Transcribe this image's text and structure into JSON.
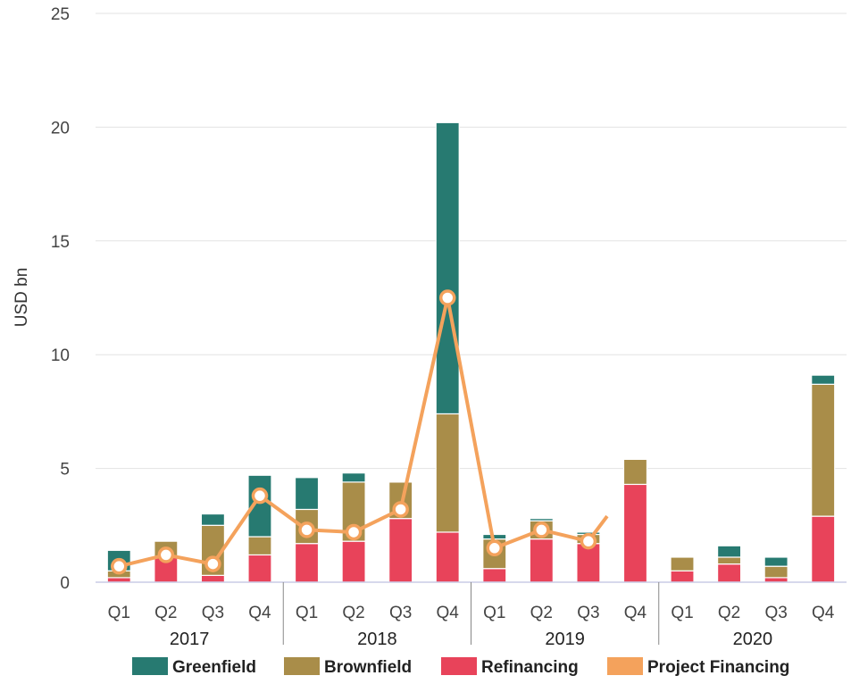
{
  "chart_data": {
    "type": "bar",
    "ylabel": "USD bn",
    "ylim": [
      0,
      25
    ],
    "yticks": [
      0,
      5,
      10,
      15,
      20,
      25
    ],
    "grid": "horizontal",
    "legend_position": "bottom",
    "categories": [
      "Q1",
      "Q2",
      "Q3",
      "Q4",
      "Q1",
      "Q2",
      "Q3",
      "Q4",
      "Q1",
      "Q2",
      "Q3",
      "Q4",
      "Q1",
      "Q2",
      "Q3",
      "Q4"
    ],
    "years": [
      "2017",
      "2018",
      "2019",
      "2020"
    ],
    "series": [
      {
        "name": "Refinancing",
        "color": "#e8435a",
        "kind": "stacked-bar",
        "values": [
          0.2,
          1.1,
          0.3,
          1.2,
          1.7,
          1.8,
          2.8,
          2.2,
          0.6,
          1.9,
          1.7,
          4.3,
          0.5,
          0.8,
          0.2,
          2.9
        ]
      },
      {
        "name": "Brownfield",
        "color": "#a98d49",
        "kind": "stacked-bar",
        "values": [
          0.3,
          0.7,
          2.2,
          0.8,
          1.5,
          2.6,
          1.6,
          5.2,
          1.3,
          0.8,
          0.4,
          1.1,
          0.6,
          0.3,
          0.5,
          5.8
        ]
      },
      {
        "name": "Greenfield",
        "color": "#277a71",
        "kind": "stacked-bar",
        "values": [
          0.9,
          0.0,
          0.5,
          2.7,
          1.4,
          0.4,
          0.0,
          12.8,
          0.2,
          0.1,
          0.1,
          0.0,
          0.0,
          0.5,
          0.4,
          0.4
        ]
      },
      {
        "name": "Project Financing",
        "color": "#f4a25c",
        "kind": "line",
        "values": [
          0.7,
          1.2,
          0.8,
          3.8,
          2.3,
          2.2,
          3.2,
          12.5,
          1.5,
          2.3,
          1.8,
          null,
          null,
          null,
          null,
          null
        ],
        "segment_end": 2.9
      }
    ],
    "legend_order": [
      "Greenfield",
      "Brownfield",
      "Refinancing",
      "Project Financing"
    ]
  }
}
